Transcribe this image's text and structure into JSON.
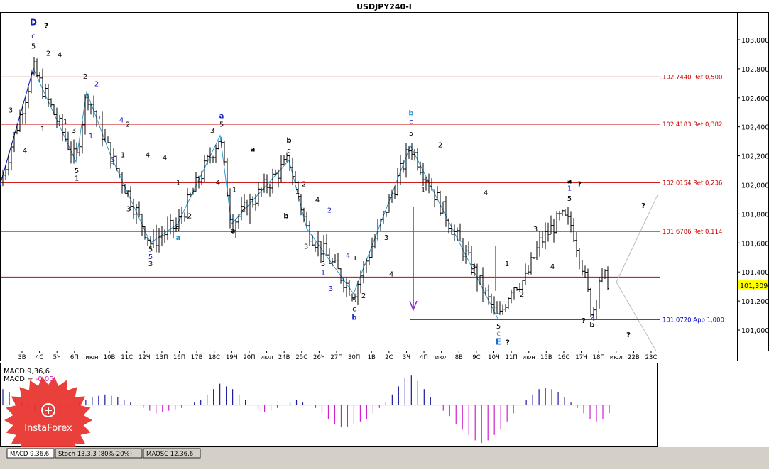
{
  "chart_data": [
    {
      "type": "ohlc",
      "title": "USDJPY240-I",
      "instrument": "USDJPY",
      "timeframe": "H4",
      "ylim": [
        100.84,
        103.08
      ],
      "y_ticks": [
        "103,000",
        "102,800",
        "102,600",
        "102,400",
        "102,200",
        "102,000",
        "101,800",
        "101,600",
        "101,400",
        "101,200",
        "101,000"
      ],
      "x_tick_labels": [
        "3В",
        "4С",
        "5Ч",
        "6П",
        "июн",
        "10В",
        "11С",
        "12Ч",
        "13П",
        "16П",
        "17В",
        "18С",
        "19Ч",
        "20П",
        "июл",
        "24В",
        "25С",
        "26Ч",
        "27П",
        "30П",
        "1В",
        "2С",
        "3Ч",
        "4П",
        "июл",
        "8В",
        "9С",
        "10Ч",
        "11П",
        "июн",
        "15В",
        "16С",
        "17Ч",
        "18П",
        "июл",
        "22В",
        "23С"
      ],
      "current_price": "101,309",
      "levels": [
        {
          "label": "102,7440 Ret 0,500",
          "value": 102.744,
          "color": "#cc0000"
        },
        {
          "label": "102,4183 Ret 0,382",
          "value": 102.418,
          "color": "#cc0000"
        },
        {
          "label": "102,0154 Ret 0,236",
          "value": 102.015,
          "color": "#cc0000"
        },
        {
          "label": "101,6786 Ret 0,114",
          "value": 101.679,
          "color": "#cc0000"
        },
        {
          "label": "101,0720 App 1,000",
          "value": 101.072,
          "color": "#0000cc"
        }
      ],
      "red_support_line": 101.365,
      "wave_path": [
        {
          "x": 0,
          "y": 102.0
        },
        {
          "x": 47,
          "y": 102.8
        },
        {
          "x": 107,
          "y": 102.16
        },
        {
          "x": 122,
          "y": 102.64
        },
        {
          "x": 156,
          "y": 102.2
        },
        {
          "x": 212,
          "y": 101.6
        },
        {
          "x": 250,
          "y": 101.73
        },
        {
          "x": 310,
          "y": 102.34
        },
        {
          "x": 326,
          "y": 101.73
        },
        {
          "x": 407,
          "y": 102.17
        },
        {
          "x": 432,
          "y": 101.7
        },
        {
          "x": 498,
          "y": 101.25
        },
        {
          "x": 578,
          "y": 102.27
        },
        {
          "x": 702,
          "y": 101.07
        }
      ],
      "wave_labels": [
        {
          "text": "D",
          "x": 47,
          "y": 103.1,
          "color": "#1a1ab0"
        },
        {
          "text": "?",
          "x": 65,
          "y": 103.08,
          "color": "#000000"
        },
        {
          "text": "c",
          "x": 47,
          "y": 103.01,
          "color": "#1a1ab0"
        },
        {
          "text": "5",
          "x": 47,
          "y": 102.94,
          "color": "#000000"
        },
        {
          "text": "2",
          "x": 68,
          "y": 102.89,
          "color": "#000000"
        },
        {
          "text": "4",
          "x": 84,
          "y": 102.88,
          "color": "#000000"
        },
        {
          "text": "3",
          "x": 15,
          "y": 102.5,
          "color": "#000000"
        },
        {
          "text": "4",
          "x": 35,
          "y": 102.22,
          "color": "#000000"
        },
        {
          "text": "1",
          "x": 60,
          "y": 102.37,
          "color": "#000000"
        },
        {
          "text": "1",
          "x": 92,
          "y": 102.42,
          "color": "#000000"
        },
        {
          "text": "3",
          "x": 104,
          "y": 102.36,
          "color": "#000000"
        },
        {
          "text": "5",
          "x": 108,
          "y": 102.08,
          "color": "#000000"
        },
        {
          "text": "1",
          "x": 108,
          "y": 102.03,
          "color": "#000000"
        },
        {
          "text": "2",
          "x": 120,
          "y": 102.73,
          "color": "#000000"
        },
        {
          "text": "2",
          "x": 136,
          "y": 102.68,
          "color": "#2222cc"
        },
        {
          "text": "1",
          "x": 128,
          "y": 102.32,
          "color": "#2222cc"
        },
        {
          "text": "4",
          "x": 171,
          "y": 102.43,
          "color": "#2222cc"
        },
        {
          "text": "2",
          "x": 180,
          "y": 102.4,
          "color": "#000000"
        },
        {
          "text": "1",
          "x": 173,
          "y": 102.19,
          "color": "#000000"
        },
        {
          "text": "3",
          "x": 159,
          "y": 102.16,
          "color": "#2222cc"
        },
        {
          "text": "4",
          "x": 208,
          "y": 102.19,
          "color": "#000000"
        },
        {
          "text": "4",
          "x": 232,
          "y": 102.17,
          "color": "#000000"
        },
        {
          "text": "3",
          "x": 181,
          "y": 101.82,
          "color": "#000000"
        },
        {
          "text": "5",
          "x": 212,
          "y": 101.54,
          "color": "#000000"
        },
        {
          "text": "5",
          "x": 212,
          "y": 101.49,
          "color": "#1a1ab0"
        },
        {
          "text": "3",
          "x": 212,
          "y": 101.44,
          "color": "#000000"
        },
        {
          "text": "1",
          "x": 251,
          "y": 102.0,
          "color": "#000000"
        },
        {
          "text": "2",
          "x": 267,
          "y": 101.77,
          "color": "#000000"
        },
        {
          "text": "5",
          "x": 250,
          "y": 101.68,
          "color": "#000000"
        },
        {
          "text": "a",
          "x": 251,
          "y": 101.62,
          "color": "#1a8ab0"
        },
        {
          "text": "3",
          "x": 299,
          "y": 102.36,
          "color": "#000000"
        },
        {
          "text": "a",
          "x": 312,
          "y": 102.46,
          "color": "#1a1ab0"
        },
        {
          "text": "5",
          "x": 312,
          "y": 102.4,
          "color": "#000000"
        },
        {
          "text": "4",
          "x": 307,
          "y": 102.0,
          "color": "#000000"
        },
        {
          "text": "1",
          "x": 330,
          "y": 101.95,
          "color": "#000000"
        },
        {
          "text": "2",
          "x": 343,
          "y": 101.82,
          "color": "#000000"
        },
        {
          "text": "a",
          "x": 328,
          "y": 101.67,
          "color": "#000000"
        },
        {
          "text": "a",
          "x": 356,
          "y": 102.23,
          "color": "#000000"
        },
        {
          "text": "b",
          "x": 407,
          "y": 102.29,
          "color": "#000000"
        },
        {
          "text": "c",
          "x": 407,
          "y": 102.22,
          "color": "#000000"
        },
        {
          "text": "2",
          "x": 428,
          "y": 101.99,
          "color": "#000000"
        },
        {
          "text": "1",
          "x": 419,
          "y": 101.94,
          "color": "#000000"
        },
        {
          "text": "b",
          "x": 403,
          "y": 101.77,
          "color": "#000000"
        },
        {
          "text": "4",
          "x": 447,
          "y": 101.88,
          "color": "#000000"
        },
        {
          "text": "2",
          "x": 464,
          "y": 101.81,
          "color": "#2222cc"
        },
        {
          "text": "3",
          "x": 431,
          "y": 101.56,
          "color": "#000000"
        },
        {
          "text": "5",
          "x": 455,
          "y": 101.44,
          "color": "#000000"
        },
        {
          "text": "1",
          "x": 455,
          "y": 101.38,
          "color": "#2222cc"
        },
        {
          "text": "4",
          "x": 490,
          "y": 101.5,
          "color": "#2222cc"
        },
        {
          "text": "1",
          "x": 500,
          "y": 101.48,
          "color": "#000000"
        },
        {
          "text": "3",
          "x": 466,
          "y": 101.27,
          "color": "#2222cc"
        },
        {
          "text": "2",
          "x": 512,
          "y": 101.22,
          "color": "#000000"
        },
        {
          "text": "5",
          "x": 499,
          "y": 101.19,
          "color": "#2222cc"
        },
        {
          "text": "c",
          "x": 499,
          "y": 101.13,
          "color": "#000000"
        },
        {
          "text": "b",
          "x": 499,
          "y": 101.07,
          "color": "#2222cc"
        },
        {
          "text": "3",
          "x": 544,
          "y": 101.62,
          "color": "#000000"
        },
        {
          "text": "4",
          "x": 551,
          "y": 101.37,
          "color": "#000000"
        },
        {
          "text": "b",
          "x": 579,
          "y": 102.48,
          "color": "#2a9ad0"
        },
        {
          "text": "c",
          "x": 579,
          "y": 102.42,
          "color": "#1a1ab0"
        },
        {
          "text": "5",
          "x": 579,
          "y": 102.34,
          "color": "#000000"
        },
        {
          "text": "2",
          "x": 620,
          "y": 102.26,
          "color": "#000000"
        },
        {
          "text": "1",
          "x": 596,
          "y": 101.95,
          "color": "#000000"
        },
        {
          "text": "4",
          "x": 684,
          "y": 101.93,
          "color": "#000000"
        },
        {
          "text": "3",
          "x": 667,
          "y": 101.42,
          "color": "#000000"
        },
        {
          "text": "1",
          "x": 714,
          "y": 101.44,
          "color": "#000000"
        },
        {
          "text": "2",
          "x": 735,
          "y": 101.23,
          "color": "#000000"
        },
        {
          "text": "5",
          "x": 702,
          "y": 101.01,
          "color": "#000000"
        },
        {
          "text": "c",
          "x": 702,
          "y": 100.96,
          "color": "#1a9ac0"
        },
        {
          "text": "E",
          "x": 702,
          "y": 100.9,
          "color": "#1a6ad0"
        },
        {
          "text": "?",
          "x": 715,
          "y": 100.9,
          "color": "#000000"
        },
        {
          "text": "3",
          "x": 754,
          "y": 101.68,
          "color": "#000000"
        },
        {
          "text": "4",
          "x": 778,
          "y": 101.42,
          "color": "#000000"
        },
        {
          "text": "a",
          "x": 802,
          "y": 102.01,
          "color": "#000000"
        },
        {
          "text": "?",
          "x": 816,
          "y": 101.99,
          "color": "#000000"
        },
        {
          "text": "1",
          "x": 802,
          "y": 101.96,
          "color": "#2222cc"
        },
        {
          "text": "5",
          "x": 802,
          "y": 101.89,
          "color": "#000000"
        },
        {
          "text": "2",
          "x": 834,
          "y": 101.07,
          "color": "#2222cc"
        },
        {
          "text": "?",
          "x": 822,
          "y": 101.05,
          "color": "#000000"
        },
        {
          "text": "b",
          "x": 834,
          "y": 101.02,
          "color": "#000000"
        },
        {
          "text": "?",
          "x": 906,
          "y": 101.84,
          "color": "#000000"
        },
        {
          "text": "?",
          "x": 885,
          "y": 100.95,
          "color": "#000000"
        }
      ]
    },
    {
      "type": "histogram",
      "title": "MACD",
      "label": "MACD 9,36,6",
      "value_label": "MACD = ",
      "value": "-0,05",
      "positive_color": "#1a1a9a",
      "negative_color": "#cc22cc",
      "values": [
        0.06,
        0.05,
        0.03,
        0.01,
        -0.01,
        -0.02,
        -0.03,
        -0.04,
        -0.03,
        -0.02,
        -0.01,
        0.0,
        0.01,
        0.02,
        0.03,
        0.035,
        0.04,
        0.035,
        0.03,
        0.02,
        0.01,
        0.0,
        -0.01,
        -0.02,
        -0.03,
        -0.025,
        -0.02,
        -0.015,
        -0.01,
        0.0,
        0.01,
        0.02,
        0.04,
        0.06,
        0.08,
        0.07,
        0.06,
        0.04,
        0.02,
        0.0,
        -0.015,
        -0.025,
        -0.02,
        -0.01,
        0.0,
        0.01,
        0.02,
        0.01,
        0.0,
        -0.01,
        -0.03,
        -0.05,
        -0.07,
        -0.08,
        -0.08,
        -0.07,
        -0.06,
        -0.05,
        -0.03,
        -0.01,
        0.01,
        0.04,
        0.07,
        0.1,
        0.11,
        0.09,
        0.06,
        0.03,
        0.0,
        -0.02,
        -0.04,
        -0.07,
        -0.09,
        -0.11,
        -0.13,
        -0.14,
        -0.13,
        -0.11,
        -0.09,
        -0.06,
        -0.03,
        0.0,
        0.02,
        0.04,
        0.06,
        0.065,
        0.06,
        0.05,
        0.03,
        0.01,
        -0.01,
        -0.03,
        -0.05,
        -0.06,
        -0.05,
        -0.03
      ]
    }
  ],
  "indicator_tabs": [
    "MACD 9,36,6",
    "Stoch 13,3,3 (80%-20%)",
    "MAOSC 12,36,6"
  ],
  "logo": {
    "text": "InstaForex",
    "color": "#e8302a"
  },
  "colors": {
    "bull": "#000000",
    "bear": "#000000",
    "ret_line": "#cc0000",
    "app_line": "#0000cc",
    "wave_path": "#2a9ad0",
    "wave_d": "#1a1ab0",
    "projection": "#bbbbbb",
    "highlight_bar": "#cc22cc"
  }
}
